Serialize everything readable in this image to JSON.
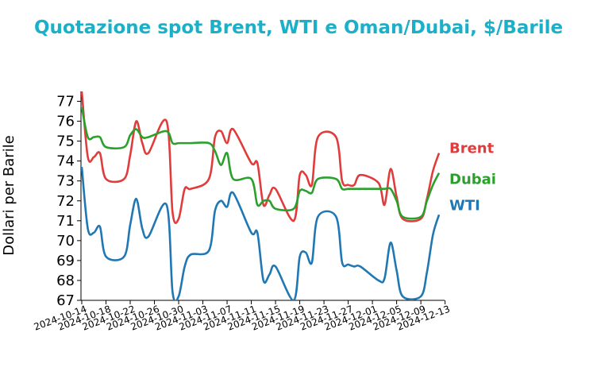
{
  "chart_data": {
    "type": "line",
    "title": "Quotazione spot Brent, WTI e Oman/Dubai, $/Barile",
    "xlabel": "",
    "ylabel": "Dollari per Barile",
    "ylim": [
      67,
      77.5
    ],
    "y_ticks": [
      "67",
      "68",
      "69",
      "70",
      "71",
      "72",
      "73",
      "74",
      "75",
      "76",
      "77"
    ],
    "x_ticks": [
      "2024-10-14",
      "2024-10-18",
      "2024-10-22",
      "2024-10-26",
      "2024-10-30",
      "2024-11-03",
      "2024-11-07",
      "2024-11-11",
      "2024-11-15",
      "2024-11-19",
      "2024-11-23",
      "2024-11-27",
      "2024-12-01",
      "2024-12-05",
      "2024-12-09",
      "2024-12-13"
    ],
    "x": [
      "2024-10-14",
      "2024-10-15",
      "2024-10-16",
      "2024-10-17",
      "2024-10-18",
      "2024-10-21",
      "2024-10-22",
      "2024-10-23",
      "2024-10-24",
      "2024-10-25",
      "2024-10-28",
      "2024-10-29",
      "2024-10-30",
      "2024-10-31",
      "2024-11-01",
      "2024-11-04",
      "2024-11-05",
      "2024-11-06",
      "2024-11-07",
      "2024-11-08",
      "2024-11-11",
      "2024-11-12",
      "2024-11-13",
      "2024-11-14",
      "2024-11-15",
      "2024-11-18",
      "2024-11-19",
      "2024-11-20",
      "2024-11-21",
      "2024-11-22",
      "2024-11-25",
      "2024-11-26",
      "2024-11-27",
      "2024-11-28",
      "2024-11-29",
      "2024-12-02",
      "2024-12-03",
      "2024-12-04",
      "2024-12-05",
      "2024-12-06",
      "2024-12-09",
      "2024-12-10",
      "2024-12-11",
      "2024-12-12"
    ],
    "series": [
      {
        "name": "Brent",
        "color": "#e03c3c",
        "values": [
          77.5,
          74.2,
          74.2,
          74.4,
          73.1,
          73.1,
          74.3,
          76.0,
          74.9,
          74.4,
          76.0,
          71.4,
          71.1,
          72.6,
          72.6,
          73.1,
          75.2,
          75.5,
          74.9,
          75.6,
          73.9,
          73.9,
          71.8,
          72.3,
          72.6,
          71.0,
          73.3,
          73.3,
          72.8,
          75.2,
          75.2,
          73.0,
          72.8,
          72.8,
          73.3,
          72.9,
          71.8,
          73.6,
          72.2,
          71.1,
          71.1,
          72.1,
          73.5,
          74.4
        ]
      },
      {
        "name": "Dubai",
        "color": "#2ca02c",
        "values": [
          76.7,
          75.2,
          75.2,
          75.2,
          74.7,
          74.7,
          75.3,
          75.6,
          75.2,
          75.2,
          75.5,
          74.9,
          74.9,
          74.9,
          74.9,
          74.9,
          74.5,
          73.8,
          74.4,
          73.1,
          73.1,
          71.8,
          72.0,
          72.0,
          71.6,
          71.6,
          72.5,
          72.5,
          72.4,
          73.1,
          73.1,
          72.6,
          72.6,
          72.6,
          72.6,
          72.6,
          72.6,
          72.6,
          72.0,
          71.2,
          71.2,
          72.0,
          72.8,
          73.4
        ]
      },
      {
        "name": "WTI",
        "color": "#1f77b4",
        "values": [
          73.7,
          70.6,
          70.4,
          70.7,
          69.2,
          69.2,
          70.8,
          72.1,
          70.6,
          70.2,
          71.8,
          67.4,
          67.2,
          68.7,
          69.3,
          69.5,
          71.5,
          72.0,
          71.7,
          72.4,
          70.4,
          70.4,
          68.0,
          68.3,
          68.7,
          67.0,
          69.2,
          69.4,
          68.9,
          71.2,
          71.2,
          68.9,
          68.8,
          68.7,
          68.7,
          68.0,
          68.1,
          69.9,
          68.5,
          67.2,
          67.2,
          68.4,
          70.3,
          71.3
        ]
      }
    ],
    "legend_placement": "right, at line ends",
    "grid": false
  }
}
